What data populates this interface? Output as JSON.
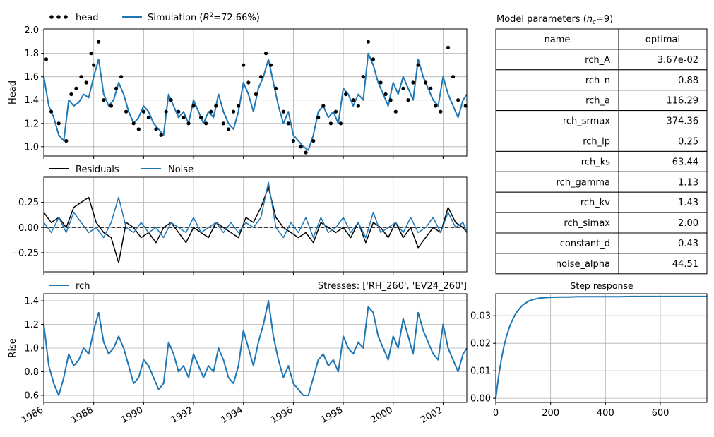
{
  "colors": {
    "simulation": "#1f77b4",
    "observed": "#000000",
    "residuals": "#000000",
    "noise": "#1f77b4",
    "grid": "#b0b0b0"
  },
  "chart_data": [
    {
      "type": "line",
      "ylabel": "Head",
      "ylim": [
        0.92,
        2.01
      ],
      "yticks": [
        "1.0",
        "1.2",
        "1.4",
        "1.6",
        "1.8",
        "2.0"
      ],
      "xlim": [
        1986.0,
        2002.95
      ],
      "grid": true,
      "legend": {
        "placement": "top-left",
        "entries": [
          "head",
          "Simulation ($R^2$=72.66%)"
        ],
        "head_label": "head",
        "sim_label_prefix": "Simulation (",
        "sim_r2": "R",
        "sim_sup": "2",
        "sim_label_suffix": "=72.66%)"
      },
      "series": [
        {
          "name": "Simulation",
          "kind": "line",
          "x": [
            1986.0,
            1986.2,
            1986.4,
            1986.6,
            1986.8,
            1987.0,
            1987.2,
            1987.4,
            1987.6,
            1987.8,
            1988.0,
            1988.2,
            1988.4,
            1988.6,
            1988.8,
            1989.0,
            1989.2,
            1989.4,
            1989.6,
            1989.8,
            1990.0,
            1990.2,
            1990.4,
            1990.6,
            1990.8,
            1991.0,
            1991.2,
            1991.4,
            1991.6,
            1991.8,
            1992.0,
            1992.2,
            1992.4,
            1992.6,
            1992.8,
            1993.0,
            1993.2,
            1993.4,
            1993.6,
            1993.8,
            1994.0,
            1994.2,
            1994.4,
            1994.6,
            1994.8,
            1995.0,
            1995.2,
            1995.4,
            1995.6,
            1995.8,
            1996.0,
            1996.2,
            1996.4,
            1996.6,
            1996.8,
            1997.0,
            1997.2,
            1997.4,
            1997.6,
            1997.8,
            1998.0,
            1998.2,
            1998.4,
            1998.6,
            1998.8,
            1999.0,
            1999.2,
            1999.4,
            1999.6,
            1999.8,
            2000.0,
            2000.2,
            2000.4,
            2000.6,
            2000.8,
            2001.0,
            2001.2,
            2001.4,
            2001.6,
            2001.8,
            2002.0,
            2002.2,
            2002.4,
            2002.6,
            2002.8,
            2002.95
          ],
          "y": [
            1.6,
            1.35,
            1.25,
            1.1,
            1.05,
            1.4,
            1.35,
            1.38,
            1.45,
            1.42,
            1.6,
            1.75,
            1.45,
            1.35,
            1.4,
            1.55,
            1.45,
            1.3,
            1.2,
            1.25,
            1.35,
            1.3,
            1.2,
            1.15,
            1.1,
            1.45,
            1.35,
            1.25,
            1.3,
            1.2,
            1.4,
            1.3,
            1.2,
            1.3,
            1.25,
            1.45,
            1.3,
            1.2,
            1.15,
            1.3,
            1.55,
            1.45,
            1.3,
            1.5,
            1.6,
            1.75,
            1.55,
            1.35,
            1.2,
            1.3,
            1.1,
            1.05,
            1.0,
            0.97,
            1.1,
            1.3,
            1.35,
            1.25,
            1.3,
            1.2,
            1.5,
            1.45,
            1.35,
            1.45,
            1.4,
            1.8,
            1.7,
            1.55,
            1.45,
            1.35,
            1.55,
            1.45,
            1.6,
            1.5,
            1.4,
            1.75,
            1.6,
            1.5,
            1.4,
            1.35,
            1.6,
            1.45,
            1.35,
            1.25,
            1.4,
            1.45
          ]
        },
        {
          "name": "head",
          "kind": "scatter",
          "x": [
            1986.1,
            1986.3,
            1986.6,
            1986.9,
            1987.1,
            1987.3,
            1987.5,
            1987.7,
            1987.9,
            1988.0,
            1988.2,
            1988.4,
            1988.7,
            1988.9,
            1989.1,
            1989.3,
            1989.6,
            1989.8,
            1990.0,
            1990.2,
            1990.5,
            1990.7,
            1990.9,
            1991.1,
            1991.4,
            1991.6,
            1991.8,
            1992.0,
            1992.3,
            1992.5,
            1992.7,
            1992.9,
            1993.2,
            1993.4,
            1993.6,
            1993.8,
            1994.0,
            1994.2,
            1994.5,
            1994.7,
            1994.9,
            1995.1,
            1995.3,
            1995.6,
            1995.8,
            1996.0,
            1996.3,
            1996.5,
            1996.8,
            1997.0,
            1997.2,
            1997.5,
            1997.7,
            1997.9,
            1998.1,
            1998.4,
            1998.6,
            1998.8,
            1999.0,
            1999.2,
            1999.5,
            1999.7,
            1999.9,
            2000.1,
            2000.4,
            2000.6,
            2000.8,
            2001.0,
            2001.3,
            2001.5,
            2001.7,
            2001.9,
            2002.2,
            2002.4,
            2002.6,
            2002.9
          ],
          "y": [
            1.75,
            1.3,
            1.2,
            1.05,
            1.45,
            1.5,
            1.6,
            1.55,
            1.8,
            1.7,
            1.9,
            1.4,
            1.35,
            1.5,
            1.6,
            1.3,
            1.2,
            1.15,
            1.3,
            1.25,
            1.15,
            1.1,
            1.3,
            1.4,
            1.3,
            1.25,
            1.2,
            1.35,
            1.25,
            1.2,
            1.3,
            1.35,
            1.2,
            1.15,
            1.3,
            1.35,
            1.7,
            1.55,
            1.45,
            1.6,
            1.8,
            1.7,
            1.5,
            1.3,
            1.2,
            1.05,
            1.0,
            0.95,
            1.05,
            1.25,
            1.35,
            1.2,
            1.3,
            1.2,
            1.45,
            1.4,
            1.35,
            1.6,
            1.9,
            1.75,
            1.55,
            1.45,
            1.4,
            1.3,
            1.5,
            1.4,
            1.55,
            1.7,
            1.55,
            1.5,
            1.35,
            1.3,
            1.85,
            1.6,
            1.4,
            1.35
          ]
        }
      ]
    },
    {
      "type": "line",
      "ylim": [
        -0.44,
        0.5
      ],
      "yticks": [
        "0.25",
        "0.00",
        "−0.25"
      ],
      "ytick_values": [
        0.25,
        0.0,
        -0.25
      ],
      "grid": true,
      "legend": {
        "placement": "top-left",
        "entries": [
          "Residuals",
          "Noise"
        ]
      },
      "series": [
        {
          "name": "Residuals",
          "x": [
            1986.0,
            1986.3,
            1986.6,
            1986.9,
            1987.2,
            1987.5,
            1987.8,
            1988.1,
            1988.4,
            1988.7,
            1989.0,
            1989.3,
            1989.6,
            1989.9,
            1990.2,
            1990.5,
            1990.8,
            1991.1,
            1991.4,
            1991.7,
            1992.0,
            1992.3,
            1992.6,
            1992.9,
            1993.2,
            1993.5,
            1993.8,
            1994.1,
            1994.4,
            1994.7,
            1995.0,
            1995.3,
            1995.6,
            1995.9,
            1996.2,
            1996.5,
            1996.8,
            1997.1,
            1997.4,
            1997.7,
            1998.0,
            1998.3,
            1998.6,
            1998.9,
            1999.2,
            1999.5,
            1999.8,
            2000.1,
            2000.4,
            2000.7,
            2001.0,
            2001.3,
            2001.6,
            2001.9,
            2002.2,
            2002.5,
            2002.8,
            2002.95
          ],
          "y": [
            0.15,
            0.05,
            0.1,
            0.0,
            0.2,
            0.25,
            0.3,
            0.05,
            -0.05,
            -0.1,
            -0.35,
            0.05,
            0.0,
            -0.1,
            -0.05,
            -0.15,
            0.0,
            0.05,
            -0.05,
            -0.15,
            0.0,
            -0.05,
            -0.1,
            0.05,
            0.0,
            -0.05,
            -0.1,
            0.1,
            0.05,
            0.2,
            0.4,
            0.1,
            0.0,
            -0.05,
            -0.1,
            -0.05,
            -0.15,
            0.05,
            0.0,
            -0.05,
            0.0,
            -0.1,
            0.05,
            -0.15,
            0.05,
            0.0,
            -0.1,
            0.05,
            -0.1,
            0.0,
            -0.2,
            -0.1,
            0.0,
            -0.05,
            0.2,
            0.05,
            0.0,
            -0.05
          ]
        },
        {
          "name": "Noise",
          "x": [
            1986.0,
            1986.3,
            1986.6,
            1986.9,
            1987.2,
            1987.5,
            1987.8,
            1988.1,
            1988.4,
            1988.7,
            1989.0,
            1989.3,
            1989.6,
            1989.9,
            1990.2,
            1990.5,
            1990.8,
            1991.1,
            1991.4,
            1991.7,
            1992.0,
            1992.3,
            1992.6,
            1992.9,
            1993.2,
            1993.5,
            1993.8,
            1994.1,
            1994.4,
            1994.7,
            1995.0,
            1995.3,
            1995.6,
            1995.9,
            1996.2,
            1996.5,
            1996.8,
            1997.1,
            1997.4,
            1997.7,
            1998.0,
            1998.3,
            1998.6,
            1998.9,
            1999.2,
            1999.5,
            1999.8,
            2000.1,
            2000.4,
            2000.7,
            2001.0,
            2001.3,
            2001.6,
            2001.9,
            2002.2,
            2002.5,
            2002.8,
            2002.95
          ],
          "y": [
            0.05,
            -0.05,
            0.1,
            -0.05,
            0.15,
            0.05,
            -0.05,
            0.0,
            -0.1,
            0.05,
            0.3,
            0.0,
            -0.05,
            0.05,
            -0.05,
            0.0,
            -0.1,
            0.05,
            0.0,
            -0.05,
            0.1,
            -0.05,
            0.0,
            0.05,
            -0.05,
            0.05,
            -0.05,
            0.05,
            0.0,
            0.1,
            0.45,
            0.0,
            -0.1,
            0.05,
            -0.05,
            0.1,
            -0.1,
            0.1,
            -0.05,
            0.0,
            0.1,
            -0.05,
            0.05,
            -0.1,
            0.15,
            -0.05,
            0.0,
            0.05,
            -0.05,
            0.1,
            -0.05,
            0.0,
            0.1,
            -0.05,
            0.15,
            0.0,
            0.05,
            -0.05
          ]
        }
      ]
    },
    {
      "type": "line",
      "ylabel": "Rise",
      "title": "Stresses: ['RH_260', 'EV24_260']",
      "ylim": [
        0.54,
        1.46
      ],
      "yticks": [
        "1.4",
        "1.2",
        "1.0",
        "0.8",
        "0.6"
      ],
      "ytick_values": [
        1.4,
        1.2,
        1.0,
        0.8,
        0.6
      ],
      "xlim": [
        1986.0,
        2002.95
      ],
      "xticks": [
        "1986",
        "1988",
        "1990",
        "1992",
        "1994",
        "1996",
        "1998",
        "2000",
        "2002"
      ],
      "xtick_values": [
        1986,
        1988,
        1990,
        1992,
        1994,
        1996,
        1998,
        2000,
        2002
      ],
      "grid": true,
      "legend": {
        "placement": "top-left",
        "entries": [
          "rch"
        ]
      },
      "series": [
        {
          "name": "rch",
          "x": [
            1986.0,
            1986.2,
            1986.4,
            1986.6,
            1986.8,
            1987.0,
            1987.2,
            1987.4,
            1987.6,
            1987.8,
            1988.0,
            1988.2,
            1988.4,
            1988.6,
            1988.8,
            1989.0,
            1989.2,
            1989.4,
            1989.6,
            1989.8,
            1990.0,
            1990.2,
            1990.4,
            1990.6,
            1990.8,
            1991.0,
            1991.2,
            1991.4,
            1991.6,
            1991.8,
            1992.0,
            1992.2,
            1992.4,
            1992.6,
            1992.8,
            1993.0,
            1993.2,
            1993.4,
            1993.6,
            1993.8,
            1994.0,
            1994.2,
            1994.4,
            1994.6,
            1994.8,
            1995.0,
            1995.2,
            1995.4,
            1995.6,
            1995.8,
            1996.0,
            1996.2,
            1996.4,
            1996.6,
            1996.8,
            1997.0,
            1997.2,
            1997.4,
            1997.6,
            1997.8,
            1998.0,
            1998.2,
            1998.4,
            1998.6,
            1998.8,
            1999.0,
            1999.2,
            1999.4,
            1999.6,
            1999.8,
            2000.0,
            2000.2,
            2000.4,
            2000.6,
            2000.8,
            2001.0,
            2001.2,
            2001.4,
            2001.6,
            2001.8,
            2002.0,
            2002.2,
            2002.4,
            2002.6,
            2002.8,
            2002.95
          ],
          "y": [
            1.2,
            0.85,
            0.7,
            0.6,
            0.75,
            0.95,
            0.85,
            0.9,
            1.0,
            0.95,
            1.15,
            1.3,
            1.05,
            0.95,
            1.0,
            1.1,
            1.0,
            0.85,
            0.7,
            0.75,
            0.9,
            0.85,
            0.75,
            0.65,
            0.7,
            1.05,
            0.95,
            0.8,
            0.85,
            0.75,
            0.95,
            0.85,
            0.75,
            0.85,
            0.8,
            1.0,
            0.9,
            0.75,
            0.7,
            0.85,
            1.15,
            1.0,
            0.85,
            1.05,
            1.2,
            1.4,
            1.1,
            0.9,
            0.75,
            0.85,
            0.7,
            0.65,
            0.6,
            0.6,
            0.75,
            0.9,
            0.95,
            0.85,
            0.9,
            0.8,
            1.1,
            1.0,
            0.95,
            1.05,
            1.0,
            1.35,
            1.3,
            1.1,
            1.0,
            0.9,
            1.1,
            1.0,
            1.25,
            1.1,
            0.95,
            1.3,
            1.15,
            1.05,
            0.95,
            0.9,
            1.2,
            1.0,
            0.9,
            0.8,
            0.95,
            1.0
          ]
        }
      ]
    },
    {
      "type": "line",
      "title": "Step response",
      "xlim": [
        0,
        770
      ],
      "ylim": [
        -0.0015,
        0.038
      ],
      "xticks": [
        "0",
        "200",
        "400",
        "600"
      ],
      "xtick_values": [
        0,
        200,
        400,
        600
      ],
      "yticks": [
        "0.03",
        "0.02",
        "0.01",
        "0.00"
      ],
      "ytick_values": [
        0.03,
        0.02,
        0.01,
        0.0
      ],
      "grid": true,
      "series": [
        {
          "name": "rch",
          "x": [
            0,
            10,
            20,
            30,
            40,
            50,
            60,
            70,
            80,
            90,
            100,
            120,
            140,
            160,
            180,
            200,
            230,
            260,
            300,
            350,
            400,
            450,
            500,
            550,
            600,
            650,
            700,
            770
          ],
          "y": [
            0.0,
            0.0078,
            0.014,
            0.0189,
            0.0228,
            0.0259,
            0.0283,
            0.0303,
            0.0318,
            0.033,
            0.034,
            0.0353,
            0.036,
            0.0364,
            0.0366,
            0.0367,
            0.0368,
            0.0368,
            0.0369,
            0.0369,
            0.0369,
            0.0369,
            0.037,
            0.037,
            0.037,
            0.037,
            0.037,
            0.037
          ]
        }
      ]
    }
  ],
  "parameters_table": {
    "title_prefix": "Model parameters (",
    "title_var": "n",
    "title_sub": "c",
    "title_suffix": "=9)",
    "header": [
      "name",
      "optimal"
    ],
    "rows": [
      [
        "rch_A",
        "3.67e-02"
      ],
      [
        "rch_n",
        "0.88"
      ],
      [
        "rch_a",
        "116.29"
      ],
      [
        "rch_srmax",
        "374.36"
      ],
      [
        "rch_lp",
        "0.25"
      ],
      [
        "rch_ks",
        "63.44"
      ],
      [
        "rch_gamma",
        "1.13"
      ],
      [
        "rch_kv",
        "1.43"
      ],
      [
        "rch_simax",
        "2.00"
      ],
      [
        "constant_d",
        "0.43"
      ],
      [
        "noise_alpha",
        "44.51"
      ]
    ]
  }
}
